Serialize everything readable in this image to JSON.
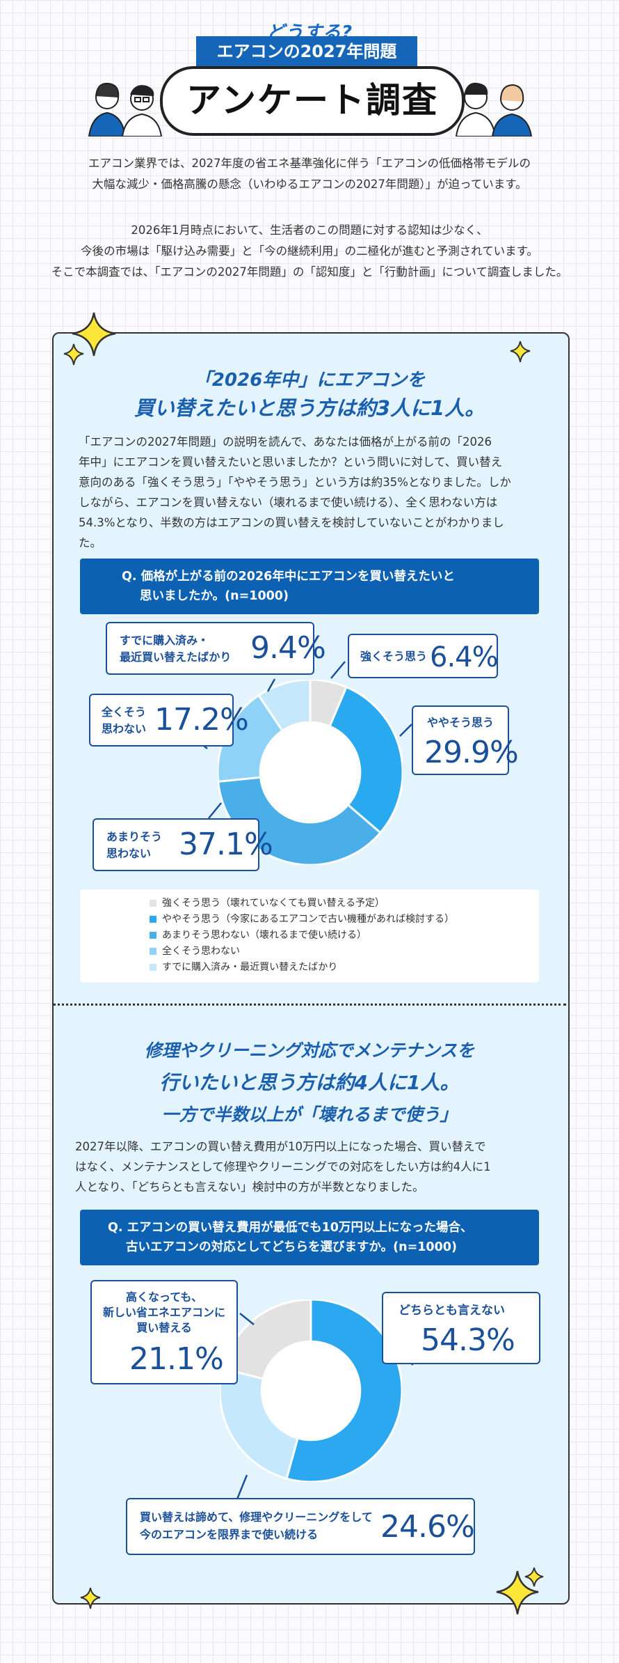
{
  "header": {
    "kicker": "どうする?",
    "subtitle": "エアコンの2027年問題",
    "title": "アンケート調査"
  },
  "intro": {
    "p1_l1": "エアコン業界では、2027年度の省エネ基準強化に伴う「エアコンの低価格帯モデルの",
    "p1_l2": "大幅な減少・価格高騰の懸念（いわゆるエアコンの2027年問題）」が迫っています。",
    "p2_l1": "2026年1月時点において、生活者のこの問題に対する認知は少なく、",
    "p2_l2": "今後の市場は「駆け込み需要」と「今の継続利用」の二極化が進むと予測されています。",
    "p2_l3": "そこで本調査では、「エアコンの2027年問題」の「認知度」と「行動計画」について調査しました。"
  },
  "section1": {
    "headline_l1": "「2026年中」にエアコンを",
    "headline_l2": "買い替えたいと思う方は約3人に1人。",
    "body": [
      "「エアコンの2027年問題」の説明を読んで、あなたは価格が上がる前の「2026",
      "年中」にエアコンを買い替えたいと思いましたか？という問いに対して、買い替え",
      "意向のある「強くそう思う」「ややそう思う」という方は約35%となりました。しか",
      "しながら、エアコンを買い替えない（壊れるまで使い続ける）、全く思わない方は",
      "54.3%となり、半数の方はエアコンの買い替えを検討していないことがわかりまし",
      "た。"
    ],
    "question_l1": "Q. 価格が上がる前の2026年中にエアコンを買い替えたいと",
    "question_l2": "思いましたか。(n=1000)",
    "callouts": {
      "strong": {
        "label": "強くそう思う",
        "value": "6.4%"
      },
      "somewhat": {
        "label": "ややそう思う",
        "value": "29.9%"
      },
      "not_really_l1": "あまりそう",
      "not_really_l2": "思わない",
      "not_really_value": "37.1%",
      "not_at_all_l1": "全くそう",
      "not_at_all_l2": "思わない",
      "not_at_all_value": "17.2%",
      "already_l1": "すでに購入済み・",
      "already_l2": "最近買い替えたばかり",
      "already_value": "9.4%"
    },
    "legend": [
      "強くそう思う（壊れていなくても買い替える予定）",
      "ややそう思う（今家にあるエアコンで古い機種があれば検討する）",
      "あまりそう思わない（壊れるまで使い続ける）",
      "全くそう思わない",
      "すでに購入済み・最近買い替えたばかり"
    ]
  },
  "section2": {
    "headline_l1": "修理やクリーニング対応でメンテナンスを",
    "headline_l2": "行いたいと思う方は約4人に1人。",
    "headline_l3": "一方で半数以上が「壊れるまで使う」",
    "body": [
      "2027年以降、エアコンの買い替え費用が10万円以上になった場合、買い替えで",
      "はなく、メンテナンスとして修理やクリーニングでの対応をしたい方は約4人に1",
      "人となり、「どちらとも言えない」検討中の方が半数となりました。"
    ],
    "question_l1": "Q. エアコンの買い替え費用が最低でも10万円以上になった場合、",
    "question_l2": "古いエアコンの対応としてどちらを選びますか。(n=1000)",
    "callouts": {
      "neither_label": "どちらとも言えない",
      "neither_value": "54.3%",
      "replace_l1": "高くなっても、",
      "replace_l2": "新しい省エネエアコンに",
      "replace_l3": "買い替える",
      "replace_value": "21.1%",
      "maintain_l1": "買い替えは諦めて、修理やクリーニングをして",
      "maintain_l2": "今のエアコンを限界まで使い続ける",
      "maintain_value": "24.6%"
    }
  },
  "chart_data": [
    {
      "type": "pie",
      "title": "Q. 価格が上がる前の2026年中にエアコンを買い替えたいと思いましたか。(n=1000)",
      "categories": [
        "強くそう思う",
        "ややそう思う",
        "あまりそう思わない",
        "全くそう思わない",
        "すでに購入済み・最近買い替えたばかり"
      ],
      "values": [
        6.4,
        29.9,
        37.1,
        17.2,
        9.4
      ],
      "colors": [
        "#e2e2e2",
        "#29aaf0",
        "#4aaee8",
        "#8fd2f8",
        "#c6e8fc"
      ],
      "donut": true,
      "legend": "bottom"
    },
    {
      "type": "pie",
      "title": "Q. エアコンの買い替え費用が最低でも10万円以上になった場合、古いエアコンの対応としてどちらを選びますか。(n=1000)",
      "categories": [
        "どちらとも言えない",
        "買い替えは諦めて、修理やクリーニングをして今のエアコンを限界まで使い続ける",
        "高くなっても、新しい省エネエアコンに買い替える"
      ],
      "values": [
        54.3,
        24.6,
        21.1
      ],
      "colors": [
        "#2ba8ef",
        "#c6e8fc",
        "#e2e2e2"
      ],
      "donut": true
    }
  ]
}
